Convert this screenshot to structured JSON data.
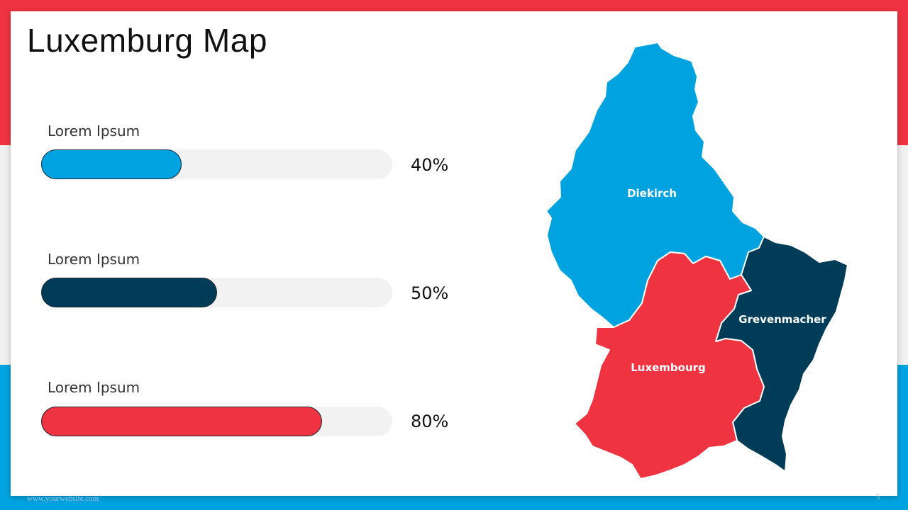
{
  "colors": {
    "red": "#ef3340",
    "light_gray": "#f0f0f0",
    "blue": "#00a3e0",
    "navy": "#003c57",
    "track": "#f2f2f2"
  },
  "title": "Luxemburg Map",
  "bars": [
    {
      "label": "Lorem Ipsum",
      "percent_text": "40%",
      "value": 40,
      "color": "#00a3e0"
    },
    {
      "label": "Lorem Ipsum",
      "percent_text": "50%",
      "value": 50,
      "color": "#003c57"
    },
    {
      "label": "Lorem Ipsum",
      "percent_text": "80%",
      "value": 80,
      "color": "#ef3340"
    }
  ],
  "map": {
    "regions": [
      {
        "name": "Diekirch",
        "color": "#00a3e0"
      },
      {
        "name": "Grevenmacher",
        "color": "#003c57"
      },
      {
        "name": "Luxembourg",
        "color": "#ef3340"
      }
    ]
  },
  "footer": {
    "url": "www.yourwebsite.com",
    "page": "5"
  }
}
